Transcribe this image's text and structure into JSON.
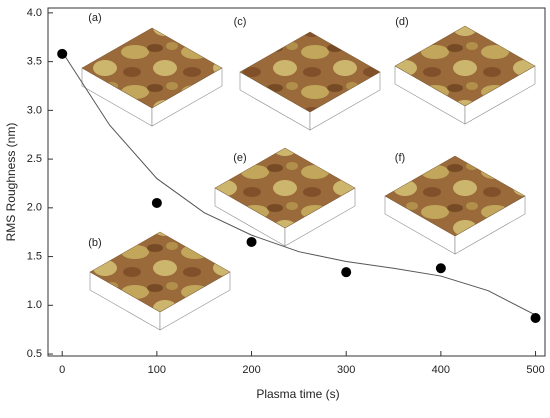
{
  "chart_data": {
    "type": "scatter",
    "x_label": "Plasma time (s)",
    "y_label": "RMS Roughness (nm)",
    "x": [
      0,
      100,
      200,
      300,
      400,
      500
    ],
    "values": [
      3.58,
      2.05,
      1.65,
      1.34,
      1.38,
      0.87
    ],
    "color": "#000000",
    "curve": {
      "x": [
        0,
        50,
        100,
        150,
        200,
        250,
        300,
        350,
        400,
        450,
        500
      ],
      "values": [
        3.6,
        2.85,
        2.3,
        1.95,
        1.72,
        1.55,
        1.45,
        1.38,
        1.3,
        1.15,
        0.9
      ],
      "color": "#555555"
    },
    "xlim": [
      -15,
      510
    ],
    "ylim": [
      0.48,
      4.05
    ],
    "xticks": [
      0,
      100,
      200,
      300,
      400,
      500
    ],
    "yticks": [
      0.5,
      {
        "value": 1,
        "label": "1.0"
      },
      1.5,
      {
        "value": 2,
        "label": "2.0"
      },
      2.5,
      {
        "value": 3,
        "label": "3.0"
      },
      3.5,
      {
        "value": 4,
        "label": "4.0"
      }
    ],
    "insets": [
      "(a)",
      "(b)",
      "(c)",
      "(d)",
      "(e)",
      "(f)"
    ]
  }
}
